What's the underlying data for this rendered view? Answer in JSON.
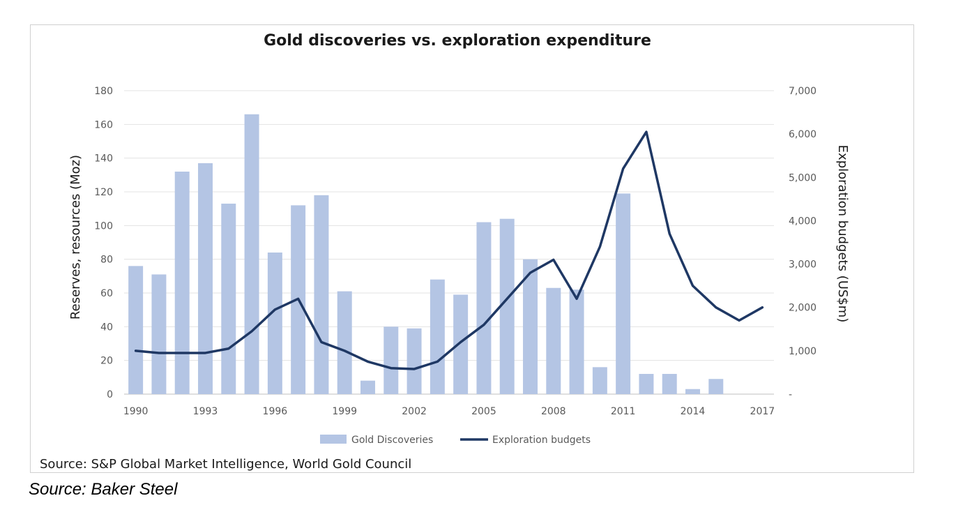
{
  "chart_data": {
    "type": "bar+line",
    "title": "Gold discoveries vs. exploration expenditure",
    "ylabel_left": "Reserves, resources (Moz)",
    "ylabel_right": "Exploration budgets (US$m)",
    "ylim_left": [
      0,
      180
    ],
    "ylim_right": [
      0,
      7000
    ],
    "yticks_left": [
      "0",
      "20",
      "40",
      "60",
      "80",
      "100",
      "120",
      "140",
      "160",
      "180"
    ],
    "yticks_right": [
      "-",
      "1,000",
      "2,000",
      "3,000",
      "4,000",
      "5,000",
      "6,000",
      "7,000"
    ],
    "xtick_labels": [
      "1990",
      "1993",
      "1996",
      "1999",
      "2002",
      "2005",
      "2008",
      "2011",
      "2014",
      "2017"
    ],
    "grid": true,
    "legend_position": "bottom",
    "categories": [
      1990,
      1991,
      1992,
      1993,
      1994,
      1995,
      1996,
      1997,
      1998,
      1999,
      2000,
      2001,
      2002,
      2003,
      2004,
      2005,
      2006,
      2007,
      2008,
      2009,
      2010,
      2011,
      2012,
      2013,
      2014,
      2015,
      2016,
      2017
    ],
    "series": [
      {
        "name": "Gold Discoveries",
        "type": "bar",
        "axis": "left",
        "color": "#b4c5e4",
        "values": [
          76,
          71,
          132,
          137,
          113,
          166,
          84,
          112,
          118,
          61,
          8,
          40,
          39,
          68,
          59,
          102,
          104,
          80,
          63,
          62,
          16,
          119,
          12,
          12,
          3,
          9,
          null,
          null
        ]
      },
      {
        "name": "Exploration budgets",
        "type": "line",
        "axis": "right",
        "color": "#1f3864",
        "values": [
          1000,
          950,
          950,
          950,
          1050,
          1450,
          1950,
          2200,
          1200,
          1000,
          750,
          600,
          580,
          750,
          1200,
          1600,
          2200,
          2800,
          3100,
          2200,
          3400,
          5200,
          6050,
          3700,
          2500,
          2000,
          1700,
          2000
        ]
      }
    ]
  },
  "source_inner": "Source: S&P Global Market Intelligence, World Gold Council",
  "source_outer": "Source: Baker Steel"
}
